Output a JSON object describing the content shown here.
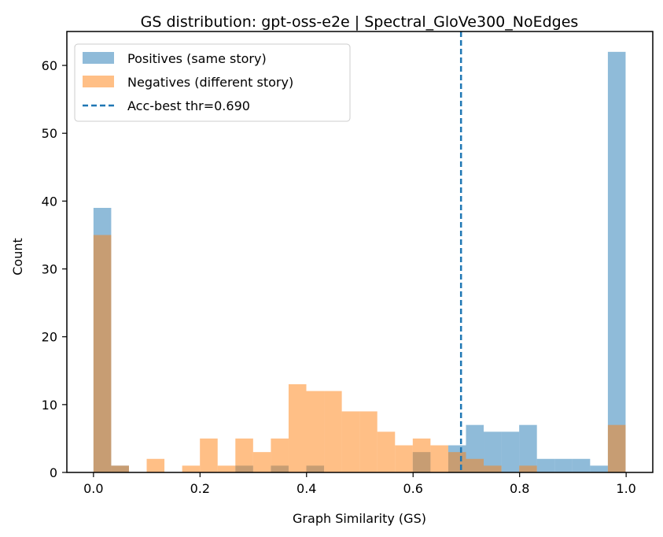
{
  "chart_data": {
    "type": "histogram",
    "title": "GS distribution: gpt-oss-e2e | Spectral_GloVe300_NoEdges",
    "xlabel": "Graph Similarity (GS)",
    "ylabel": "Count",
    "xlim": [
      -0.05,
      1.05
    ],
    "ylim": [
      0,
      65
    ],
    "xticks": [
      0.0,
      0.2,
      0.4,
      0.6,
      0.8,
      1.0
    ],
    "xtick_labels": [
      "0.0",
      "0.2",
      "0.4",
      "0.6",
      "0.8",
      "1.0"
    ],
    "yticks": [
      0,
      10,
      20,
      30,
      40,
      50,
      60
    ],
    "ytick_labels": [
      "0",
      "10",
      "20",
      "30",
      "40",
      "50",
      "60"
    ],
    "bin_width": 0.0333,
    "bins_start": 0.0,
    "grid": false,
    "legend_position": "upper-left",
    "series": [
      {
        "name": "Positives (same story)",
        "color": "#1f77b4",
        "opacity": 0.5,
        "values": [
          39,
          1,
          0,
          0,
          0,
          0,
          0,
          0,
          1,
          0,
          1,
          0,
          1,
          0,
          0,
          0,
          0,
          0,
          3,
          0,
          4,
          7,
          6,
          6,
          7,
          2,
          2,
          2,
          1,
          62
        ]
      },
      {
        "name": "Negatives (different story)",
        "color": "#ff7f0e",
        "opacity": 0.5,
        "values": [
          35,
          1,
          0,
          2,
          0,
          1,
          5,
          1,
          5,
          3,
          5,
          13,
          12,
          12,
          9,
          9,
          6,
          4,
          5,
          4,
          3,
          2,
          1,
          0,
          1,
          0,
          0,
          0,
          0,
          7
        ]
      }
    ],
    "reference_lines": [
      {
        "name": "Acc-best thr=0.690",
        "x": 0.69,
        "color": "#1f77b4",
        "style": "dashed"
      }
    ]
  }
}
